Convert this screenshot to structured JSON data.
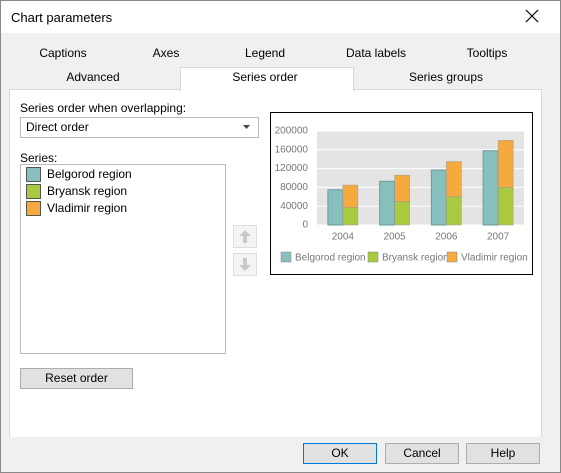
{
  "window": {
    "title": "Chart parameters"
  },
  "tabs_row1": [
    "Captions",
    "Axes",
    "Legend",
    "Data labels",
    "Tooltips"
  ],
  "tabs_row2": [
    "Advanced",
    "Series order",
    "Series groups"
  ],
  "overlap_label": "Series order when overlapping:",
  "overlap_value": "Direct order",
  "series_label": "Series:",
  "reset_button": "Reset order",
  "buttons": [
    "OK",
    "Cancel",
    "Help"
  ],
  "chart_data": {
    "type": "bar",
    "categories": [
      "2004",
      "2005",
      "2006",
      "2007"
    ],
    "series": [
      {
        "name": "Belgorod region",
        "color": "#86bfbb",
        "values": [
          75000,
          93000,
          117000,
          158000
        ]
      },
      {
        "name": "Bryansk region",
        "color": "#a9c93e",
        "values": [
          37000,
          50000,
          60000,
          80000
        ]
      },
      {
        "name": "Vladimir region",
        "color": "#f4aa3c",
        "values": [
          48000,
          56000,
          75000,
          100000
        ]
      }
    ],
    "ylim": [
      0,
      200000
    ],
    "yticks": [
      0,
      40000,
      80000,
      120000,
      160000,
      200000
    ],
    "grid": true
  }
}
